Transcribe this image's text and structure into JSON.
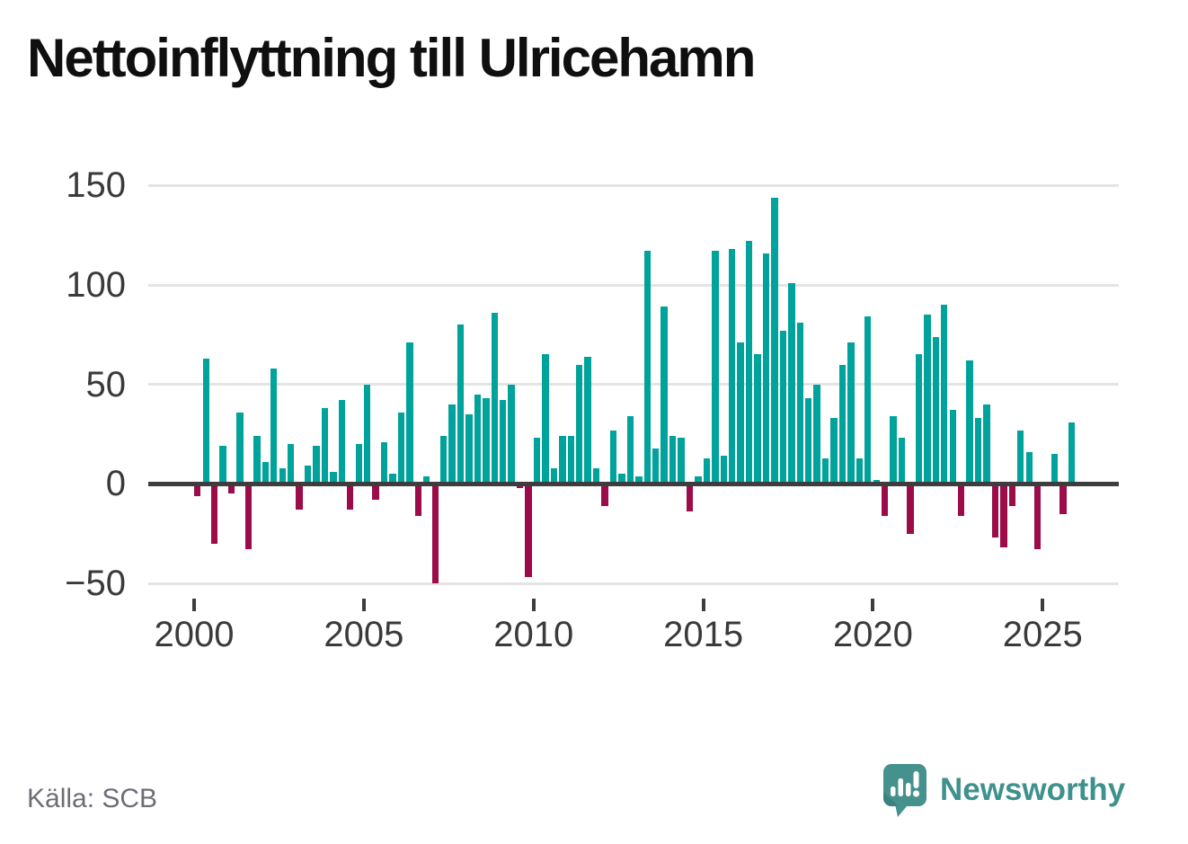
{
  "title": "Nettoinflyttning till Ulricehamn",
  "source_label": "Källa: SCB",
  "logo": {
    "name": "Newsworthy",
    "icon": "newsworthy-speech-bubble-chart-icon"
  },
  "colors": {
    "positive_bar": "#00a39b",
    "negative_bar": "#9b0c49",
    "axis": "#3d3d3d",
    "grid": "#e4e4e4",
    "tick_label": "#3a3a3a",
    "title_text": "#0f0f0f",
    "source_text": "#6d6d77",
    "logo_teal": "#3e918c"
  },
  "chart_data": {
    "type": "bar",
    "title": "Nettoinflyttning till Ulricehamn",
    "frequency": "quarterly",
    "start_year": 2000,
    "start_quarter": 1,
    "values": [
      -6,
      63,
      -30,
      19,
      -5,
      36,
      -33,
      24,
      11,
      58,
      8,
      20,
      -13,
      9,
      19,
      38,
      6,
      42,
      -13,
      20,
      50,
      -8,
      21,
      5,
      36,
      71,
      -16,
      4,
      -50,
      24,
      40,
      80,
      35,
      45,
      43,
      86,
      42,
      50,
      -2,
      -47,
      23,
      65,
      8,
      24,
      24,
      60,
      64,
      8,
      -11,
      27,
      5,
      34,
      4,
      117,
      18,
      89,
      24,
      23,
      -14,
      4,
      13,
      117,
      14,
      118,
      71,
      122,
      65,
      116,
      144,
      77,
      101,
      81,
      43,
      50,
      13,
      33,
      60,
      71,
      13,
      84,
      2,
      -16,
      34,
      23,
      -25,
      65,
      85,
      74,
      90,
      37,
      -16,
      62,
      33,
      40,
      -27,
      -32,
      -11,
      27,
      16,
      -33,
      0,
      15,
      -15,
      31
    ],
    "ylim": [
      -50,
      150
    ],
    "yticks": [
      150,
      100,
      50,
      0,
      -50
    ],
    "ytick_labels": [
      "150",
      "100",
      "50",
      "0",
      "−50"
    ],
    "xtick_years": [
      2000,
      2005,
      2010,
      2015,
      2020,
      2025
    ],
    "grid": true,
    "legend": "none",
    "bar_colors": {
      "positive": "#00a39b",
      "negative": "#9b0c49"
    }
  }
}
